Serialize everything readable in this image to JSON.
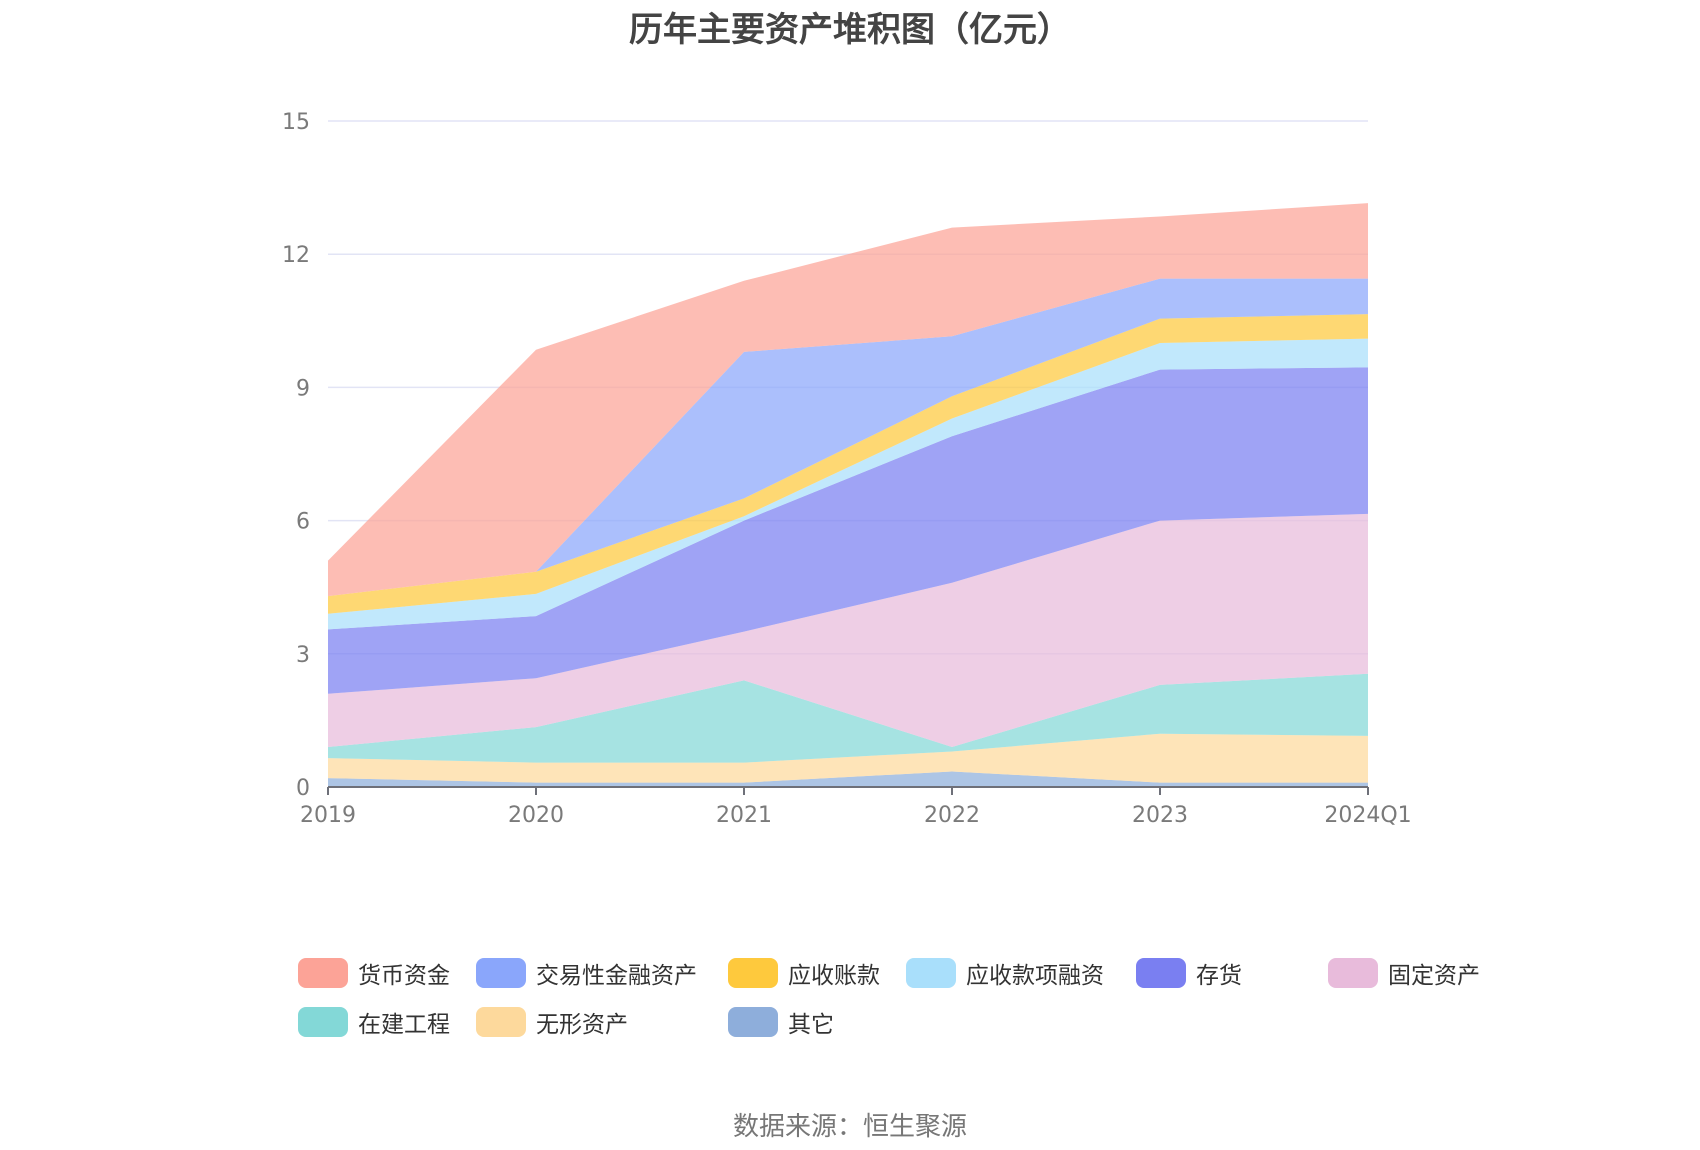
{
  "chart_data": {
    "type": "area",
    "stacked": true,
    "title": "历年主要资产堆积图（亿元）",
    "categories": [
      "2019",
      "2020",
      "2021",
      "2022",
      "2023",
      "2024Q1"
    ],
    "ylim": [
      0,
      15
    ],
    "yticks": [
      "0",
      "3",
      "6",
      "9",
      "12",
      "15"
    ],
    "grid": true,
    "legend_position": "bottom",
    "series": [
      {
        "name": "其它",
        "color": "#8eaedb",
        "values": [
          0.2,
          0.1,
          0.1,
          0.35,
          0.1,
          0.1
        ]
      },
      {
        "name": "无形资产",
        "color": "#fdd99c",
        "values": [
          0.45,
          0.45,
          0.45,
          0.45,
          1.1,
          1.05
        ]
      },
      {
        "name": "在建工程",
        "color": "#83d8d7",
        "values": [
          0.25,
          0.8,
          1.85,
          0.1,
          1.1,
          1.4
        ]
      },
      {
        "name": "固定资产",
        "color": "#e8bbdb",
        "values": [
          1.2,
          1.1,
          1.1,
          3.7,
          3.7,
          3.6
        ]
      },
      {
        "name": "存货",
        "color": "#7a7ff1",
        "values": [
          1.45,
          1.4,
          2.5,
          3.3,
          3.4,
          3.3
        ]
      },
      {
        "name": "应收款项融资",
        "color": "#a9dffb",
        "values": [
          0.35,
          0.5,
          0.1,
          0.4,
          0.6,
          0.65
        ]
      },
      {
        "name": "应收账款",
        "color": "#fec93d",
        "values": [
          0.4,
          0.5,
          0.4,
          0.5,
          0.55,
          0.55
        ]
      },
      {
        "name": "交易性金融资产",
        "color": "#8aa6fb",
        "values": [
          0,
          0,
          3.3,
          1.35,
          0.9,
          0.8
        ]
      },
      {
        "name": "货币资金",
        "color": "#fca397",
        "values": [
          0.8,
          5.0,
          1.6,
          2.45,
          1.4,
          1.7
        ]
      }
    ]
  },
  "legend": {
    "items": [
      {
        "label": "货币资金",
        "color": "#fca397"
      },
      {
        "label": "交易性金融资产",
        "color": "#8aa6fb"
      },
      {
        "label": "应收账款",
        "color": "#fec93d"
      },
      {
        "label": "应收款项融资",
        "color": "#a9dffb"
      },
      {
        "label": "存货",
        "color": "#7a7ff1"
      },
      {
        "label": "固定资产",
        "color": "#e8bbdb"
      },
      {
        "label": "在建工程",
        "color": "#83d8d7"
      },
      {
        "label": "无形资产",
        "color": "#fdd99c"
      },
      {
        "label": "其它",
        "color": "#8eaedb"
      }
    ]
  },
  "footer": {
    "source": "数据来源：恒生聚源"
  }
}
